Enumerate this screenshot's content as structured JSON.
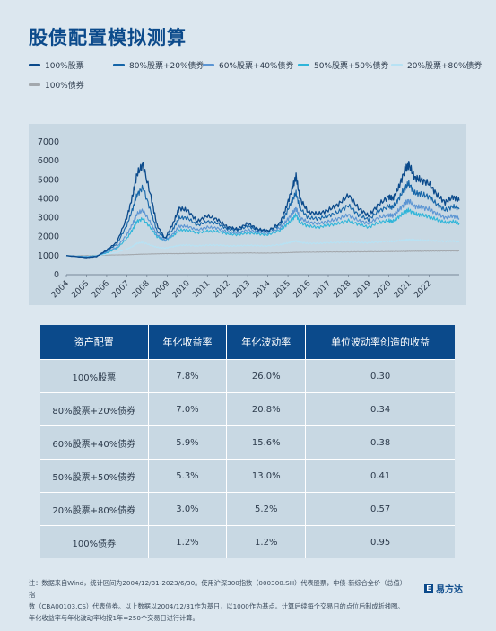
{
  "title": "股债配置模拟测算",
  "legend": [
    {
      "label": "100%股票",
      "color": "#0b4a8b"
    },
    {
      "label": "80%股票+20%债券",
      "color": "#1565a8"
    },
    {
      "label": "60%股票+40%债券",
      "color": "#5b95d3"
    },
    {
      "label": "50%股票+50%债券",
      "color": "#2fb5d9"
    },
    {
      "label": "20%股票+80%债券",
      "color": "#b7e2f4"
    },
    {
      "label": "100%债券",
      "color": "#a3a8ad"
    }
  ],
  "chart_data": {
    "type": "line",
    "x_ticks": [
      "2004",
      "2005",
      "2006",
      "2007",
      "2008",
      "2009",
      "2010",
      "2011",
      "2012",
      "2013",
      "2014",
      "2015",
      "2016",
      "2017",
      "2018",
      "2019",
      "2020",
      "2021",
      "2022"
    ],
    "y_ticks": [
      "0",
      "1000",
      "2000",
      "3000",
      "4000",
      "5000",
      "6000",
      "7000"
    ],
    "ylim": [
      0,
      7000
    ],
    "xlim": [
      2004.0,
      2023.5
    ],
    "grid": false,
    "x": [
      2004.0,
      2005.0,
      2005.5,
      2006.0,
      2006.5,
      2007.0,
      2007.3,
      2007.5,
      2007.8,
      2008.2,
      2008.5,
      2008.9,
      2009.3,
      2009.6,
      2010.0,
      2010.5,
      2011.0,
      2011.5,
      2012.0,
      2012.5,
      2013.0,
      2013.5,
      2014.0,
      2014.6,
      2014.9,
      2015.2,
      2015.4,
      2015.6,
      2016.0,
      2016.5,
      2017.0,
      2017.5,
      2018.0,
      2018.5,
      2019.0,
      2019.5,
      2020.0,
      2020.2,
      2020.5,
      2020.8,
      2021.0,
      2021.3,
      2021.6,
      2022.0,
      2022.4,
      2022.8,
      2023.2,
      2023.5
    ],
    "series": [
      {
        "name": "100%股票",
        "values": [
          1000,
          900,
          950,
          1300,
          1700,
          3000,
          4200,
          5300,
          5800,
          4100,
          2600,
          1900,
          2700,
          3500,
          3400,
          2800,
          3100,
          2900,
          2500,
          2400,
          2700,
          2400,
          2300,
          2700,
          3500,
          4500,
          5200,
          4000,
          3300,
          3200,
          3400,
          3700,
          4200,
          3500,
          3100,
          3700,
          4100,
          4000,
          4600,
          5500,
          5800,
          5100,
          5000,
          4800,
          4200,
          3800,
          4100,
          3900
        ]
      },
      {
        "name": "80%股票+20%债券",
        "values": [
          1000,
          920,
          970,
          1250,
          1600,
          2600,
          3500,
          4200,
          4600,
          3300,
          2300,
          1900,
          2400,
          3000,
          3000,
          2600,
          2800,
          2700,
          2400,
          2350,
          2550,
          2350,
          2300,
          2600,
          3200,
          3900,
          4300,
          3500,
          3000,
          2950,
          3100,
          3300,
          3650,
          3150,
          2900,
          3350,
          3600,
          3550,
          4000,
          4600,
          4800,
          4300,
          4250,
          4100,
          3700,
          3400,
          3600,
          3450
        ]
      },
      {
        "name": "60%股票+40%债券",
        "values": [
          1000,
          940,
          980,
          1200,
          1450,
          2100,
          2700,
          3200,
          3400,
          2700,
          2100,
          1800,
          2150,
          2550,
          2550,
          2350,
          2500,
          2450,
          2250,
          2200,
          2350,
          2250,
          2200,
          2450,
          2800,
          3200,
          3500,
          3000,
          2750,
          2700,
          2800,
          2950,
          3150,
          2850,
          2700,
          3000,
          3150,
          3100,
          3400,
          3750,
          3900,
          3600,
          3550,
          3450,
          3200,
          3000,
          3100,
          2950
        ]
      },
      {
        "name": "50%股票+50%债券",
        "values": [
          1000,
          950,
          990,
          1150,
          1380,
          1900,
          2400,
          2800,
          2950,
          2450,
          2000,
          1800,
          2050,
          2350,
          2350,
          2200,
          2300,
          2280,
          2150,
          2100,
          2200,
          2150,
          2100,
          2350,
          2600,
          2900,
          3150,
          2750,
          2550,
          2500,
          2600,
          2700,
          2850,
          2650,
          2500,
          2750,
          2850,
          2800,
          3050,
          3300,
          3400,
          3200,
          3150,
          3050,
          2900,
          2750,
          2800,
          2700
        ]
      },
      {
        "name": "20%股票+80%债券",
        "values": [
          1000,
          970,
          1000,
          1080,
          1180,
          1350,
          1500,
          1650,
          1700,
          1550,
          1450,
          1400,
          1480,
          1550,
          1560,
          1520,
          1560,
          1560,
          1520,
          1520,
          1550,
          1530,
          1520,
          1580,
          1650,
          1720,
          1780,
          1700,
          1650,
          1650,
          1680,
          1700,
          1730,
          1700,
          1680,
          1730,
          1760,
          1750,
          1790,
          1830,
          1850,
          1820,
          1810,
          1800,
          1780,
          1760,
          1770,
          1750
        ]
      },
      {
        "name": "100%债券",
        "values": [
          1000,
          1010,
          1020,
          1030,
          1040,
          1050,
          1060,
          1070,
          1080,
          1090,
          1100,
          1110,
          1110,
          1110,
          1120,
          1120,
          1130,
          1130,
          1140,
          1140,
          1150,
          1140,
          1140,
          1150,
          1160,
          1170,
          1180,
          1180,
          1190,
          1190,
          1200,
          1200,
          1200,
          1210,
          1210,
          1215,
          1220,
          1225,
          1225,
          1230,
          1235,
          1240,
          1240,
          1245,
          1248,
          1250,
          1252,
          1255
        ]
      }
    ]
  },
  "table": {
    "headers": [
      "资产配置",
      "年化收益率",
      "年化波动率",
      "单位波动率创造的收益"
    ],
    "rows": [
      [
        "100%股票",
        "7.8%",
        "26.0%",
        "0.30"
      ],
      [
        "80%股票+20%债券",
        "7.0%",
        "20.8%",
        "0.34"
      ],
      [
        "60%股票+40%债券",
        "5.9%",
        "15.6%",
        "0.38"
      ],
      [
        "50%股票+50%债券",
        "5.3%",
        "13.0%",
        "0.41"
      ],
      [
        "20%股票+80%债券",
        "3.0%",
        "5.2%",
        "0.57"
      ],
      [
        "100%债券",
        "1.2%",
        "1.2%",
        "0.95"
      ]
    ]
  },
  "footnote": [
    "注：数据来自Wind，统计区间为2004/12/31-2023/6/30。使用沪深300指数（000300.SH）代表股票，中债-新综合全价（总值）指",
    "数（CBA00103.CS）代表债券。以上数据以2004/12/31作为基日，以1000作为基点。计算后续每个交易日的点位后制成折线图。",
    "年化收益率与年化波动率均按1年=250个交易日进行计算。"
  ],
  "logo": {
    "mark": "E",
    "text": "易方达"
  }
}
